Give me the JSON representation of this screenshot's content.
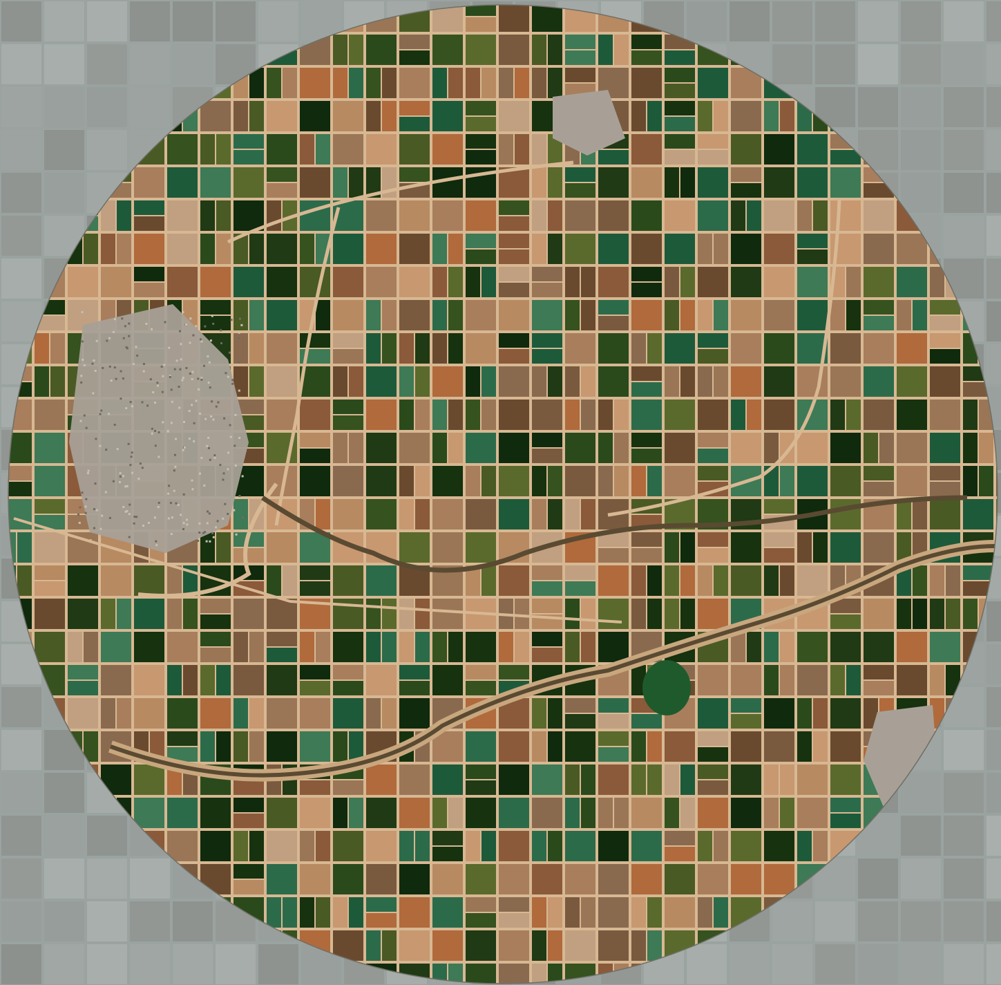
{
  "view": {
    "type": "satellite-imagery",
    "mode": "circular-highlight",
    "description_visible_text": []
  },
  "colors": {
    "outside_wash": "#9aa3a0",
    "outside_grid": "#b9bdb9",
    "field_palette": [
      "#1f3a14",
      "#16320f",
      "#2a4a1c",
      "#35521f",
      "#4a5a24",
      "#5a6a2c",
      "#0f2a0c",
      "#1d5a3a",
      "#2c6b4a",
      "#3d7a55",
      "#7a5a3e",
      "#8a6a4e",
      "#9a7656",
      "#a87e5c",
      "#b88a62",
      "#c89870",
      "#b06a3c",
      "#8a5a3a",
      "#6a4a2e",
      "#c0a080"
    ],
    "road": "#d7b893",
    "river": "#5a4a32",
    "town": "#a8a096"
  }
}
